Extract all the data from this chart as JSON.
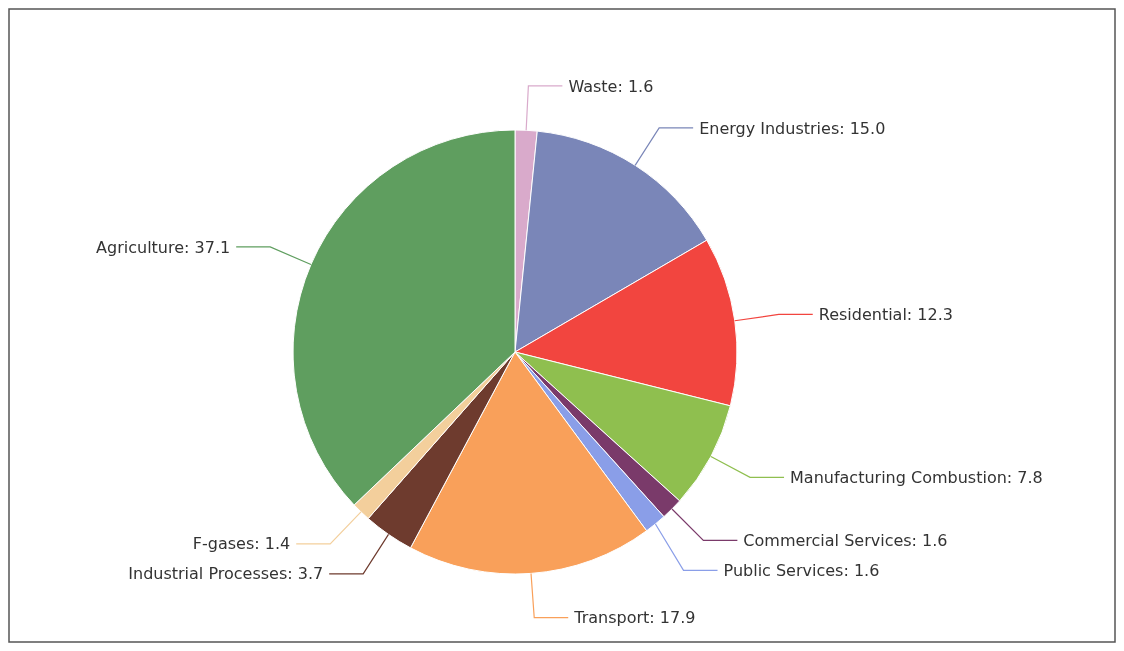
{
  "chart_data": {
    "type": "pie",
    "categories": [
      "Waste",
      "Energy Industries",
      "Residential",
      "Manufacturing Combustion",
      "Commercial Services",
      "Public Services",
      "Transport",
      "Industrial Processes",
      "F-gases",
      "Agriculture"
    ],
    "values": [
      1.6,
      15.0,
      12.3,
      7.8,
      1.6,
      1.6,
      17.9,
      3.7,
      1.4,
      37.1
    ],
    "colors": [
      "#d9aacb",
      "#7a86b8",
      "#f2453f",
      "#8fbf4f",
      "#7a3a6a",
      "#8a9ee8",
      "#f9a05a",
      "#6e3b2e",
      "#f3cf9c",
      "#5f9e5f"
    ],
    "value_labels": [
      "1.6",
      "15.0",
      "12.3",
      "7.8",
      "1.6",
      "1.6",
      "17.9",
      "3.7",
      "1.4",
      "37.1"
    ]
  }
}
